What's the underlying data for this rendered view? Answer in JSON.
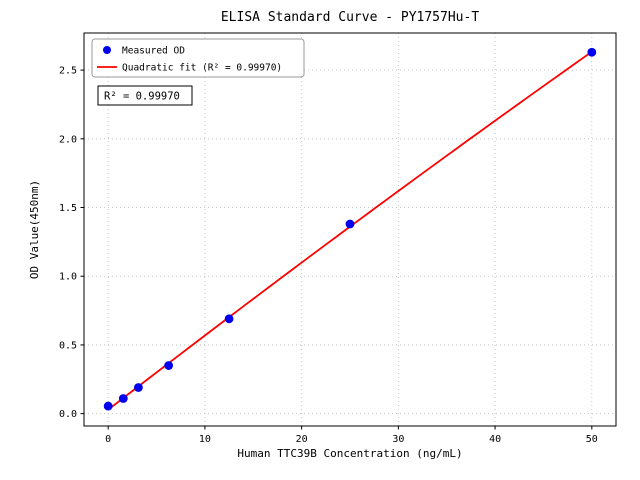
{
  "chart_data": {
    "type": "scatter",
    "title": "ELISA Standard Curve - PY1757Hu-T",
    "xlabel": "Human TTC39B Concentration (ng/mL)",
    "ylabel": "OD Value(450nm)",
    "xlim": [
      -2.5,
      52.5
    ],
    "ylim": [
      -0.09,
      2.77
    ],
    "x_ticks": [
      0,
      10,
      20,
      30,
      40,
      50
    ],
    "x_tick_labels": [
      "0",
      "10",
      "20",
      "30",
      "40",
      "50"
    ],
    "y_ticks": [
      0.0,
      0.5,
      1.0,
      1.5,
      2.0,
      2.5
    ],
    "y_tick_labels": [
      "0.0",
      "0.5",
      "1.0",
      "1.5",
      "2.0",
      "2.5"
    ],
    "grid": true,
    "legend_position": "upper left",
    "series": [
      {
        "name": "Measured OD",
        "kind": "scatter",
        "color": "#0000ee",
        "x": [
          0,
          1.5625,
          3.125,
          6.25,
          12.5,
          25,
          50
        ],
        "y": [
          0.055,
          0.11,
          0.19,
          0.35,
          0.69,
          1.38,
          2.63
        ]
      },
      {
        "name": "Quadratic fit (R² = 0.99970)",
        "kind": "line",
        "color": "#ff0000"
      }
    ],
    "annotation": "R² = 0.99970",
    "colors": {
      "marker": "#0000ee",
      "fit_line": "#ff0000",
      "grid": "#b8b8b8",
      "axis": "#000000",
      "legend_border": "#999999"
    }
  }
}
